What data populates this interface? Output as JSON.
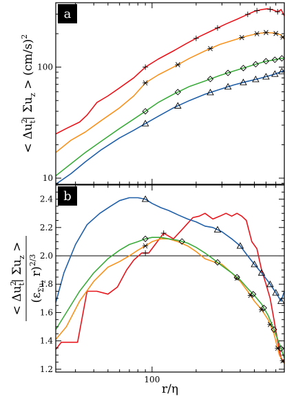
{
  "chart_data": [
    {
      "panel": "a",
      "type": "line",
      "xscale": "log",
      "yscale": "log",
      "xlim": [
        22,
        800
      ],
      "ylim": [
        8.8,
        380
      ],
      "ylabel": {
        "text": "< Δu",
        "sup": "2",
        "sub_t": "t",
        "rest": "| Σu",
        "sub_z": "z",
        "tail": " > (cm/s)",
        "sup2": "2"
      },
      "yticks": [
        10,
        100
      ],
      "ytick_labels": [
        "10",
        "100"
      ],
      "series": [
        {
          "color": "#e8141b",
          "marker": "plus",
          "x": [
            22,
            26,
            32,
            36,
            42,
            50,
            60,
            75,
            90,
            110,
            140,
            170,
            210,
            260,
            320,
            380,
            440,
            500,
            560,
            610,
            660,
            720,
            760,
            800
          ],
          "y": [
            25,
            28,
            32,
            37,
            48,
            55,
            65,
            80,
            100,
            118,
            140,
            162,
            188,
            215,
            245,
            270,
            295,
            318,
            330,
            335,
            330,
            315,
            330,
            290
          ],
          "markers_x": [
            90,
            200,
            280,
            450,
            520,
            640,
            720
          ]
        },
        {
          "color": "#f7931e",
          "marker": "asterisk",
          "x": [
            22,
            28,
            35,
            45,
            60,
            75,
            90,
            110,
            140,
            180,
            230,
            290,
            360,
            440,
            520,
            600,
            680,
            760,
            800
          ],
          "y": [
            17,
            22,
            26,
            33,
            43,
            55,
            72,
            85,
            100,
            120,
            140,
            160,
            175,
            190,
            200,
            205,
            203,
            195,
            178
          ],
          "markers_x": [
            90,
            150,
            250,
            410,
            520,
            600,
            700,
            780
          ]
        },
        {
          "color": "#3bab3b",
          "marker": "diamond",
          "x": [
            22,
            28,
            35,
            45,
            60,
            75,
            90,
            110,
            140,
            180,
            230,
            290,
            360,
            440,
            520,
            600,
            680,
            760,
            800
          ],
          "y": [
            10.5,
            13.5,
            17,
            21.5,
            28,
            34,
            40,
            48,
            57,
            67,
            75,
            84,
            92,
            100,
            107,
            113,
            116,
            120,
            120
          ],
          "markers_x": [
            90,
            150,
            250,
            330,
            420,
            510,
            600,
            690,
            770
          ]
        },
        {
          "color": "#1f5fa8",
          "marker": "triangle",
          "x": [
            22,
            28,
            35,
            45,
            60,
            75,
            90,
            110,
            140,
            180,
            230,
            290,
            360,
            440,
            520,
            600,
            680,
            760,
            800
          ],
          "y": [
            8.8,
            11,
            14,
            18,
            23,
            27,
            31,
            36,
            43,
            50,
            57,
            63,
            69,
            74,
            78,
            82,
            86,
            91,
            93
          ],
          "markers_x": [
            90,
            150,
            250,
            330,
            420,
            510,
            600,
            690,
            770
          ]
        }
      ]
    },
    {
      "panel": "b",
      "type": "line",
      "xscale": "log",
      "yscale": "linear",
      "xlim": [
        22,
        800
      ],
      "ylim": [
        1.18,
        2.5
      ],
      "xlabel": {
        "text": "r/η"
      },
      "ylabel_num": {
        "text": "< Δu",
        "sup": "2",
        "sub_t": "t",
        "rest": "| Σu",
        "sub_z": "z",
        "tail": " >"
      },
      "ylabel_den": {
        "text": "(ε",
        "sub": "Σu",
        "subsub": "z",
        "tail": " r)",
        "sup": "2/3"
      },
      "yticks": [
        1.2,
        1.4,
        1.6,
        1.8,
        2.0,
        2.2,
        2.4
      ],
      "ytick_labels": [
        "1.2",
        "1.4",
        "1.6",
        "1.8",
        "2.0",
        "2.2",
        "2.4"
      ],
      "xticks": [
        100
      ],
      "xtick_labels": [
        "100"
      ],
      "hline": 2.0,
      "series": [
        {
          "color": "#e8141b",
          "marker": "plus",
          "x": [
            22,
            24,
            31,
            36,
            42,
            50,
            58,
            67,
            75,
            85,
            95,
            105,
            120,
            140,
            165,
            190,
            210,
            230,
            260,
            290,
            320,
            350,
            380,
            410,
            440,
            480,
            520,
            560,
            600,
            640,
            680,
            720,
            760,
            800
          ],
          "y": [
            1.34,
            1.39,
            1.39,
            1.75,
            1.75,
            1.73,
            1.78,
            1.9,
            1.97,
            2.02,
            2.02,
            2.08,
            2.16,
            2.12,
            2.2,
            2.27,
            2.28,
            2.3,
            2.26,
            2.28,
            2.3,
            2.28,
            2.3,
            2.28,
            2.25,
            2.1,
            2.05,
            1.9,
            1.8,
            1.7,
            1.55,
            1.4,
            1.28,
            1.25
          ],
          "markers_x": [
            90,
            120
          ]
        },
        {
          "color": "#f7931e",
          "marker": "asterisk",
          "x": [
            22,
            26,
            32,
            40,
            50,
            60,
            70,
            80,
            90,
            100,
            115,
            130,
            150,
            175,
            200,
            230,
            260,
            300,
            350,
            400,
            450,
            500,
            560,
            620,
            680,
            740,
            800
          ],
          "y": [
            1.41,
            1.5,
            1.68,
            1.82,
            1.92,
            1.96,
            2.0,
            2.04,
            2.07,
            2.1,
            2.12,
            2.12,
            2.1,
            2.07,
            2.03,
            1.98,
            1.96,
            1.94,
            1.88,
            1.82,
            1.75,
            1.68,
            1.62,
            1.55,
            1.45,
            1.3,
            1.24
          ],
          "markers_x": [
            90,
            380,
            470,
            560,
            640,
            720,
            780
          ]
        },
        {
          "color": "#3bab3b",
          "marker": "diamond",
          "x": [
            22,
            26,
            32,
            40,
            50,
            60,
            70,
            80,
            90,
            100,
            115,
            130,
            150,
            175,
            200,
            230,
            260,
            300,
            350,
            400,
            450,
            500,
            560,
            620,
            680,
            740,
            800
          ],
          "y": [
            1.48,
            1.6,
            1.75,
            1.88,
            1.98,
            2.04,
            2.08,
            2.1,
            2.12,
            2.13,
            2.13,
            2.12,
            2.11,
            2.09,
            2.06,
            2.02,
            1.98,
            1.93,
            1.88,
            1.83,
            1.77,
            1.72,
            1.66,
            1.58,
            1.48,
            1.38,
            1.28
          ],
          "markers_x": [
            90,
            160,
            280,
            380,
            490,
            580,
            680,
            760
          ]
        },
        {
          "color": "#1f5fa8",
          "marker": "triangle",
          "x": [
            22,
            25,
            30,
            36,
            44,
            52,
            60,
            70,
            80,
            90,
            100,
            115,
            130,
            150,
            175,
            200,
            230,
            260,
            300,
            350,
            400,
            450,
            500,
            560,
            620,
            680,
            720,
            760,
            800
          ],
          "y": [
            1.67,
            1.88,
            2.08,
            2.22,
            2.3,
            2.35,
            2.39,
            2.41,
            2.41,
            2.4,
            2.37,
            2.34,
            2.32,
            2.29,
            2.26,
            2.24,
            2.21,
            2.2,
            2.17,
            2.12,
            2.07,
            2.0,
            1.94,
            1.88,
            1.82,
            1.76,
            1.72,
            1.68,
            1.75
          ],
          "markers_x": [
            90,
            280,
            400,
            500,
            560,
            640,
            700,
            760
          ]
        }
      ]
    }
  ]
}
